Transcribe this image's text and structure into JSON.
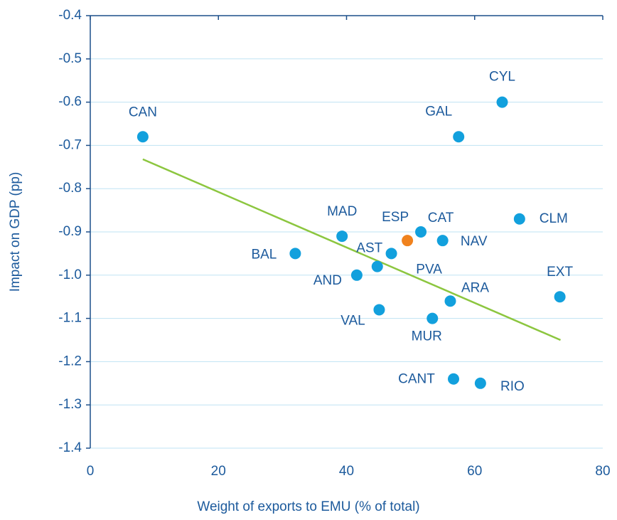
{
  "chart_data": {
    "type": "scatter",
    "x_label": "Weight of exports to EMU (% of total)",
    "y_label": "Impact on GDP (pp)",
    "labels": [
      "CAN",
      "CYL",
      "GAL",
      "CLM",
      "MAD",
      "ESP",
      "CAT",
      "NAV",
      "BAL",
      "PVA",
      "AST",
      "AND",
      "ARA",
      "EXT",
      "VAL",
      "MUR",
      "CANT",
      "RIO"
    ],
    "x": [
      8.2,
      64.3,
      57.5,
      67.0,
      39.3,
      49.5,
      51.6,
      55.0,
      32.0,
      47.0,
      44.8,
      41.6,
      56.2,
      73.3,
      45.1,
      53.4,
      56.7,
      60.9
    ],
    "y": [
      -0.68,
      -0.6,
      -0.68,
      -0.87,
      -0.91,
      -0.92,
      -0.9,
      -0.92,
      -0.95,
      -0.95,
      -0.98,
      -1.0,
      -1.06,
      -1.05,
      -1.08,
      -1.1,
      -1.24,
      -1.25
    ],
    "point_colors": [
      "#12a0dd",
      "#12a0dd",
      "#12a0dd",
      "#12a0dd",
      "#12a0dd",
      "#f0821e",
      "#12a0dd",
      "#12a0dd",
      "#12a0dd",
      "#12a0dd",
      "#12a0dd",
      "#12a0dd",
      "#12a0dd",
      "#12a0dd",
      "#12a0dd",
      "#12a0dd",
      "#12a0dd",
      "#12a0dd"
    ],
    "trendline": {
      "x": [
        8.2,
        73.4
      ],
      "y": [
        -0.732,
        -1.15
      ],
      "color": "#8cc63f"
    },
    "xlim": [
      0,
      80
    ],
    "xticks": [
      0,
      20,
      40,
      60,
      80
    ],
    "ylim": [
      -1.4,
      -0.4
    ],
    "yticks": [
      -1.4,
      -1.3,
      -1.2,
      -1.1,
      {
        "value": -1,
        "label": "-1.0"
      },
      -0.9,
      -0.8,
      -0.7,
      -0.6,
      -0.5,
      -0.4
    ],
    "grid": true
  }
}
